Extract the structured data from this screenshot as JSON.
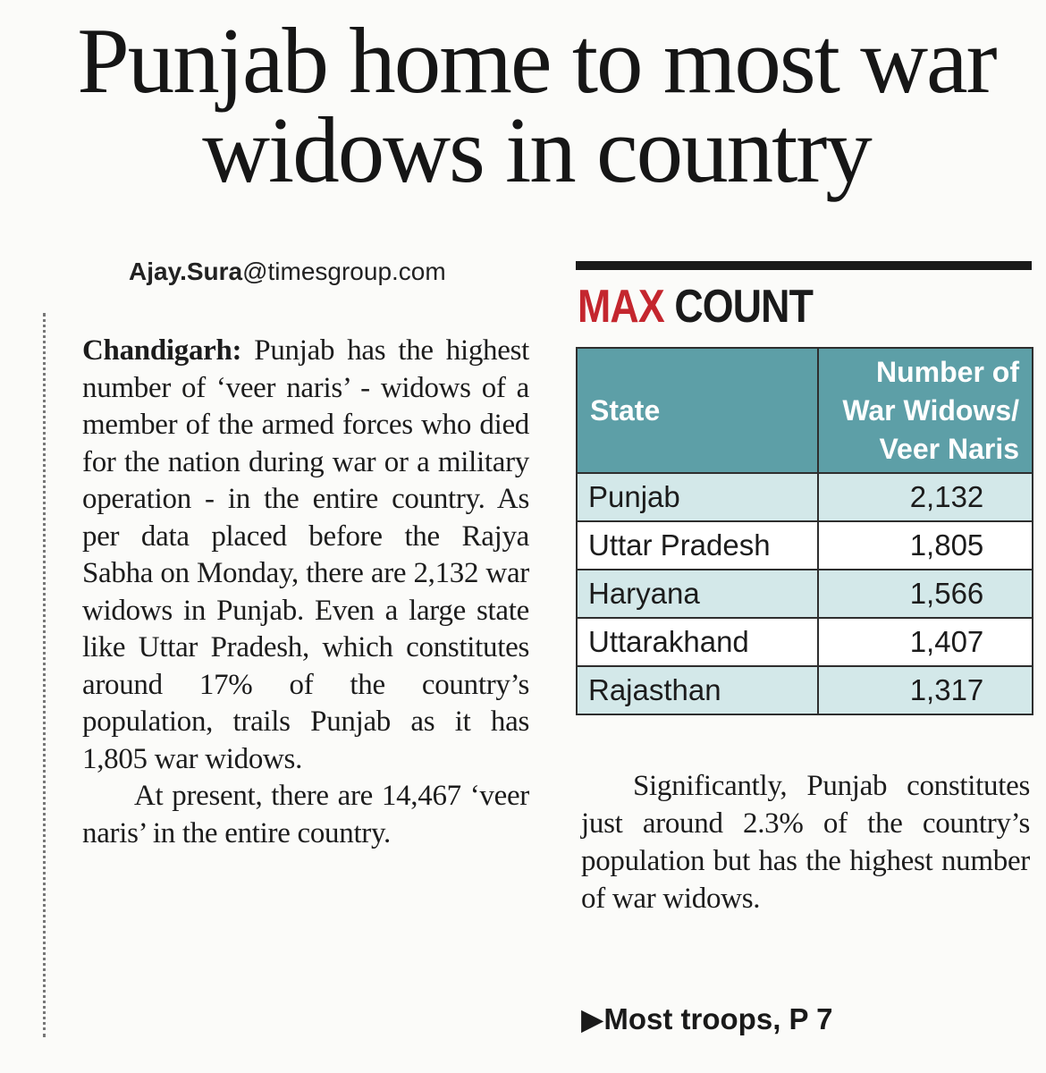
{
  "headline": "Punjab home to most war widows in country",
  "byline": {
    "user": "Ajay.Sura",
    "domain": "@timesgroup.com"
  },
  "article": {
    "dateline": "Chandigarh:",
    "para1": "Punjab has the highest number of ‘veer naris’ - widows of a member of the armed forces who died for the nation during war or a military operation - in the entire country. As per data placed before the Rajya Sabha on Monday, there are 2,132 war widows in Punjab. Even a large state like Uttar Pradesh, which constitutes around 17% of the country’s population, trails Punjab as it has 1,805 war widows.",
    "para2": "At present, there are 14,467 ‘veer naris’ in the entire country.",
    "para3": "Significantly, Punjab constitutes just around 2.3% of the country’s population but has the highest number of war widows."
  },
  "box": {
    "title_red": "MAX",
    "title_dark": "COUNT",
    "header_state": "State",
    "header_count": "Number of War Widows/ Veer Naris",
    "rows": [
      {
        "state": "Punjab",
        "count": "2,132"
      },
      {
        "state": "Uttar Pradesh",
        "count": "1,805"
      },
      {
        "state": "Haryana",
        "count": "1,566"
      },
      {
        "state": "Uttarakhand",
        "count": "1,407"
      },
      {
        "state": "Rajasthan",
        "count": "1,317"
      }
    ]
  },
  "jump": "▶Most troops, P 7",
  "colors": {
    "table_header": "#5d9fa7",
    "row_tint": "#d3e8e9",
    "accent_red": "#c4262e"
  }
}
